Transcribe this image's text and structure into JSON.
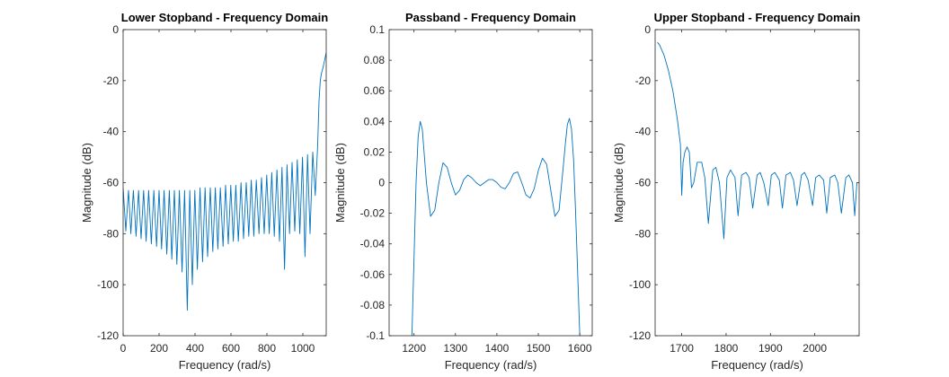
{
  "chart_data": [
    {
      "type": "line",
      "title": "Lower Stopband - Frequency Domain",
      "xlabel": "Frequency (rad/s)",
      "ylabel": "Magnitude (dB)",
      "xlim": [
        0,
        1130
      ],
      "ylim": [
        -120,
        0
      ],
      "xticks": [
        0,
        200,
        400,
        600,
        800,
        1000
      ],
      "yticks": [
        0,
        -20,
        -40,
        -60,
        -80,
        -100,
        -120
      ],
      "grid": false,
      "line_color": "#0072BD",
      "series": [
        {
          "x": [
            0,
            15,
            30,
            43,
            57,
            72,
            86,
            100,
            114,
            128,
            142,
            157,
            171,
            186,
            200,
            214,
            228,
            243,
            257,
            271,
            285,
            299,
            313,
            328,
            342,
            357,
            371,
            385,
            399,
            413,
            428,
            442,
            456,
            470,
            485,
            499,
            513,
            527,
            541,
            556,
            570,
            585,
            599,
            613,
            627,
            641,
            656,
            670,
            685,
            699,
            713,
            727,
            741,
            756,
            770,
            785,
            799,
            813,
            827,
            841,
            856,
            870,
            884,
            898,
            912,
            926,
            940,
            955,
            969,
            983,
            998,
            1012,
            1026,
            1040,
            1055,
            1069,
            1082,
            1090,
            1097,
            1104,
            1112,
            1118,
            1124,
            1130
          ],
          "y": [
            -62,
            -79,
            -63,
            -80,
            -63,
            -81,
            -63,
            -82,
            -63,
            -83,
            -63,
            -84,
            -63,
            -85,
            -63,
            -86,
            -63,
            -88,
            -63,
            -90,
            -63,
            -92,
            -63,
            -95,
            -63,
            -110,
            -63,
            -100,
            -63,
            -94,
            -62,
            -91,
            -62,
            -89,
            -62,
            -87,
            -62,
            -86,
            -62,
            -85,
            -61,
            -84,
            -61,
            -83,
            -61,
            -83,
            -60,
            -82,
            -60,
            -81,
            -59,
            -81,
            -59,
            -80,
            -58,
            -80,
            -57,
            -80,
            -56,
            -81,
            -55,
            -83,
            -54,
            -94,
            -53,
            -80,
            -52,
            -79,
            -51,
            -80,
            -50,
            -89,
            -49,
            -80,
            -48,
            -65,
            -46,
            -28,
            -20,
            -17,
            -15,
            -13,
            -11,
            -9
          ]
        }
      ]
    },
    {
      "type": "line",
      "title": "Passband - Frequency Domain",
      "xlabel": "Frequency (rad/s)",
      "ylabel": "Magnitude (dB)",
      "xlim": [
        1140,
        1630
      ],
      "ylim": [
        -0.1,
        0.1
      ],
      "xticks": [
        1200,
        1300,
        1400,
        1500,
        1600
      ],
      "yticks": [
        0.1,
        0.08,
        0.06,
        0.04,
        0.02,
        0,
        -0.02,
        -0.04,
        -0.06,
        -0.08,
        -0.1
      ],
      "grid": false,
      "line_color": "#0072BD",
      "series": [
        {
          "x": [
            1195,
            1200,
            1205,
            1210,
            1215,
            1220,
            1230,
            1240,
            1250,
            1260,
            1270,
            1280,
            1290,
            1300,
            1310,
            1320,
            1330,
            1340,
            1350,
            1360,
            1370,
            1380,
            1390,
            1400,
            1410,
            1420,
            1430,
            1440,
            1450,
            1460,
            1470,
            1480,
            1490,
            1500,
            1510,
            1520,
            1530,
            1540,
            1550,
            1560,
            1565,
            1570,
            1575,
            1580,
            1585,
            1590,
            1595,
            1600
          ],
          "y": [
            -0.1,
            -0.05,
            0.0,
            0.03,
            0.04,
            0.035,
            0.0,
            -0.022,
            -0.018,
            0.0,
            0.013,
            0.01,
            0.0,
            -0.008,
            -0.005,
            0.002,
            0.005,
            0.003,
            0.0,
            -0.002,
            0.0,
            0.002,
            0.002,
            0.0,
            -0.003,
            -0.004,
            0.0,
            0.006,
            0.007,
            0.0,
            -0.008,
            -0.01,
            -0.004,
            0.008,
            0.016,
            0.012,
            -0.005,
            -0.022,
            -0.018,
            0.01,
            0.025,
            0.038,
            0.042,
            0.035,
            0.015,
            -0.02,
            -0.06,
            -0.1
          ]
        }
      ]
    },
    {
      "type": "line",
      "title": "Upper Stopband - Frequency Domain",
      "xlabel": "Frequency (rad/s)",
      "ylabel": "Magnitude (dB)",
      "xlim": [
        1640,
        2100
      ],
      "ylim": [
        -120,
        0
      ],
      "xticks": [
        1700,
        1800,
        1900,
        2000
      ],
      "yticks": [
        0,
        -20,
        -40,
        -60,
        -80,
        -100,
        -120
      ],
      "grid": false,
      "line_color": "#0072BD",
      "series": [
        {
          "x": [
            1645,
            1650,
            1660,
            1670,
            1680,
            1690,
            1697,
            1700,
            1703,
            1707,
            1712,
            1717,
            1722,
            1727,
            1735,
            1745,
            1752,
            1760,
            1770,
            1777,
            1785,
            1795,
            1802,
            1810,
            1820,
            1827,
            1835,
            1845,
            1852,
            1860,
            1870,
            1877,
            1885,
            1895,
            1902,
            1910,
            1920,
            1927,
            1935,
            1945,
            1952,
            1960,
            1970,
            1977,
            1985,
            1995,
            2002,
            2010,
            2020,
            2027,
            2035,
            2045,
            2052,
            2060,
            2070,
            2077,
            2085,
            2090,
            2095
          ],
          "y": [
            -5,
            -6,
            -10,
            -16,
            -24,
            -35,
            -45,
            -65,
            -52,
            -48,
            -46,
            -48,
            -62,
            -60,
            -52,
            -52,
            -58,
            -76,
            -55,
            -54,
            -60,
            -82,
            -58,
            -55,
            -58,
            -73,
            -57,
            -56,
            -58,
            -70,
            -57,
            -56,
            -60,
            -69,
            -57,
            -56,
            -59,
            -70,
            -57,
            -56,
            -59,
            -69,
            -57,
            -56,
            -59,
            -69,
            -58,
            -57,
            -59,
            -72,
            -58,
            -57,
            -60,
            -72,
            -58,
            -57,
            -60,
            -73,
            -60
          ]
        }
      ]
    }
  ]
}
